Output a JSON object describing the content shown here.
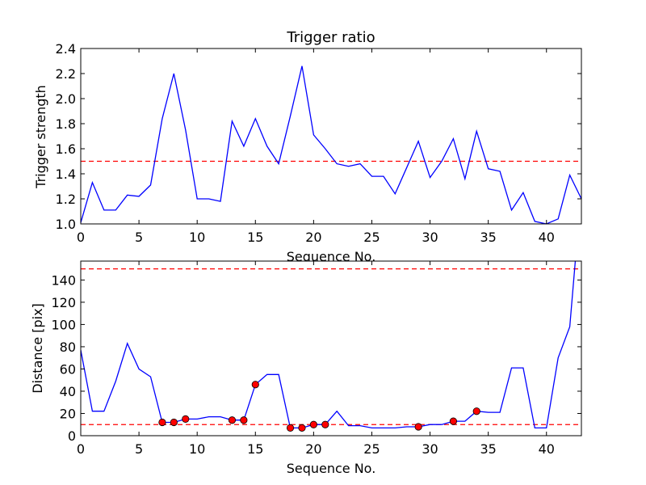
{
  "chart_data": [
    {
      "type": "line",
      "title": "Trigger ratio",
      "xlabel": "Sequence No.",
      "ylabel": "Trigger strength",
      "xlim": [
        0,
        43
      ],
      "ylim": [
        1.0,
        2.4
      ],
      "x_ticks": [
        "0",
        "5",
        "10",
        "15",
        "20",
        "25",
        "30",
        "35",
        "40"
      ],
      "y_ticks": [
        "1.0",
        "1.2",
        "1.4",
        "1.6",
        "1.8",
        "2.0",
        "2.2",
        "2.4"
      ],
      "grid": false,
      "line_color": "#0000ff",
      "threshold": {
        "value": 1.5,
        "color": "#ff0000",
        "style": "dashed"
      },
      "series": [
        {
          "x": [
            0,
            1,
            2,
            3,
            4,
            5,
            6,
            7,
            8,
            9,
            10,
            11,
            12,
            13,
            14,
            15,
            16,
            17,
            18,
            19,
            20,
            21,
            22,
            23,
            24,
            25,
            26,
            27,
            28,
            29,
            30,
            31,
            32,
            33,
            34,
            35,
            36,
            37,
            38,
            39,
            40,
            41,
            42,
            43
          ],
          "values": [
            1.01,
            1.33,
            1.11,
            1.11,
            1.23,
            1.22,
            1.31,
            1.84,
            2.2,
            1.75,
            1.2,
            1.2,
            1.18,
            1.82,
            1.62,
            1.84,
            1.62,
            1.48,
            1.86,
            2.26,
            1.71,
            1.6,
            1.48,
            1.46,
            1.48,
            1.38,
            1.38,
            1.24,
            1.45,
            1.66,
            1.37,
            1.5,
            1.68,
            1.36,
            1.74,
            1.44,
            1.42,
            1.11,
            1.25,
            1.02,
            1.0,
            1.04,
            1.39,
            1.2
          ]
        }
      ]
    },
    {
      "type": "line",
      "title": "",
      "xlabel": "Sequence No.",
      "ylabel": "Distance [pix]",
      "xlim": [
        0,
        43
      ],
      "ylim": [
        0,
        157
      ],
      "x_ticks": [
        "0",
        "5",
        "10",
        "15",
        "20",
        "25",
        "30",
        "35",
        "40"
      ],
      "y_ticks": [
        "0",
        "20",
        "40",
        "60",
        "80",
        "100",
        "120",
        "140"
      ],
      "grid": false,
      "line_color": "#0000ff",
      "thresholds": [
        {
          "value": 150,
          "color": "#ff0000",
          "style": "dashed"
        },
        {
          "value": 10,
          "color": "#ff0000",
          "style": "dashed"
        }
      ],
      "series": [
        {
          "x": [
            0,
            1,
            2,
            3,
            4,
            5,
            6,
            7,
            8,
            9,
            10,
            11,
            12,
            13,
            14,
            15,
            16,
            17,
            18,
            19,
            20,
            21,
            22,
            23,
            24,
            25,
            26,
            27,
            28,
            29,
            30,
            31,
            32,
            33,
            34,
            35,
            36,
            37,
            38,
            39,
            40,
            41,
            42,
            42.5
          ],
          "values": [
            77,
            22,
            22,
            49,
            83,
            60,
            53,
            12,
            12,
            15,
            15,
            17,
            17,
            14,
            14,
            46,
            55,
            55,
            7,
            7,
            10,
            10,
            22,
            9,
            9,
            7,
            7,
            7,
            8,
            8,
            10,
            10,
            13,
            13,
            22,
            21,
            21,
            61,
            61,
            7,
            7,
            70,
            98,
            160
          ]
        }
      ],
      "markers": {
        "color": "#ff0000",
        "x": [
          7,
          8,
          9,
          13,
          14,
          15,
          18,
          19,
          20,
          21,
          29,
          32,
          34
        ],
        "values": [
          12,
          12,
          15,
          14,
          14,
          46,
          7,
          7,
          10,
          10,
          8,
          13,
          22
        ]
      }
    }
  ]
}
